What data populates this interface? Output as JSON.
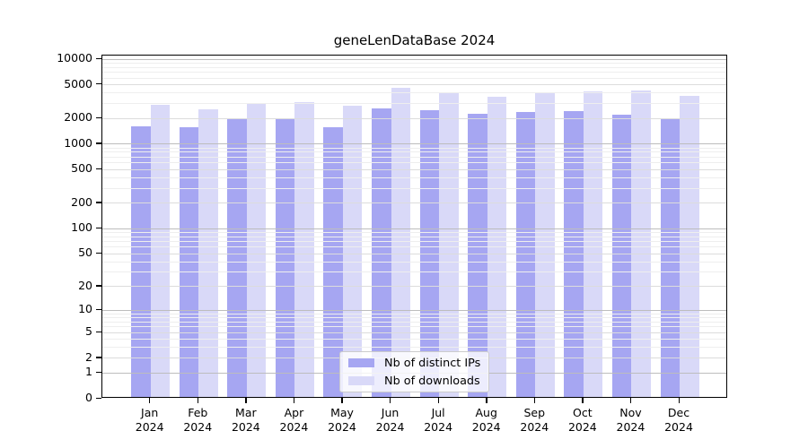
{
  "chart_data": {
    "type": "bar",
    "title": "geneLenDataBase 2024",
    "categories": [
      "Jan",
      "Feb",
      "Mar",
      "Apr",
      "May",
      "Jun",
      "Jul",
      "Aug",
      "Sep",
      "Oct",
      "Nov",
      "Dec"
    ],
    "x_tick_year": "2024",
    "series": [
      {
        "name": "Nb of distinct IPs",
        "color": "#a6a6f2",
        "values": [
          1530,
          1490,
          1870,
          1910,
          1500,
          2500,
          2390,
          2170,
          2260,
          2350,
          2130,
          1870
        ]
      },
      {
        "name": "Nb of downloads",
        "color": "#d9d9f8",
        "values": [
          2780,
          2460,
          2850,
          3000,
          2720,
          4400,
          3900,
          3450,
          3800,
          4000,
          4100,
          3500
        ]
      }
    ],
    "yscale": "log1p",
    "ylim": [
      0,
      10000
    ],
    "ytick_labels": [
      "0",
      "1",
      "2",
      "5",
      "10",
      "20",
      "50",
      "100",
      "200",
      "500",
      "1000",
      "2000",
      "5000",
      "10000"
    ],
    "grid": true,
    "legend_position": "lower center"
  },
  "colors": {
    "background": "#ffffff",
    "axis": "#000000",
    "grid_decade": "#bdbdbd",
    "grid_labeled": "#dcdcdc",
    "grid_minor": "#eeeeee"
  }
}
